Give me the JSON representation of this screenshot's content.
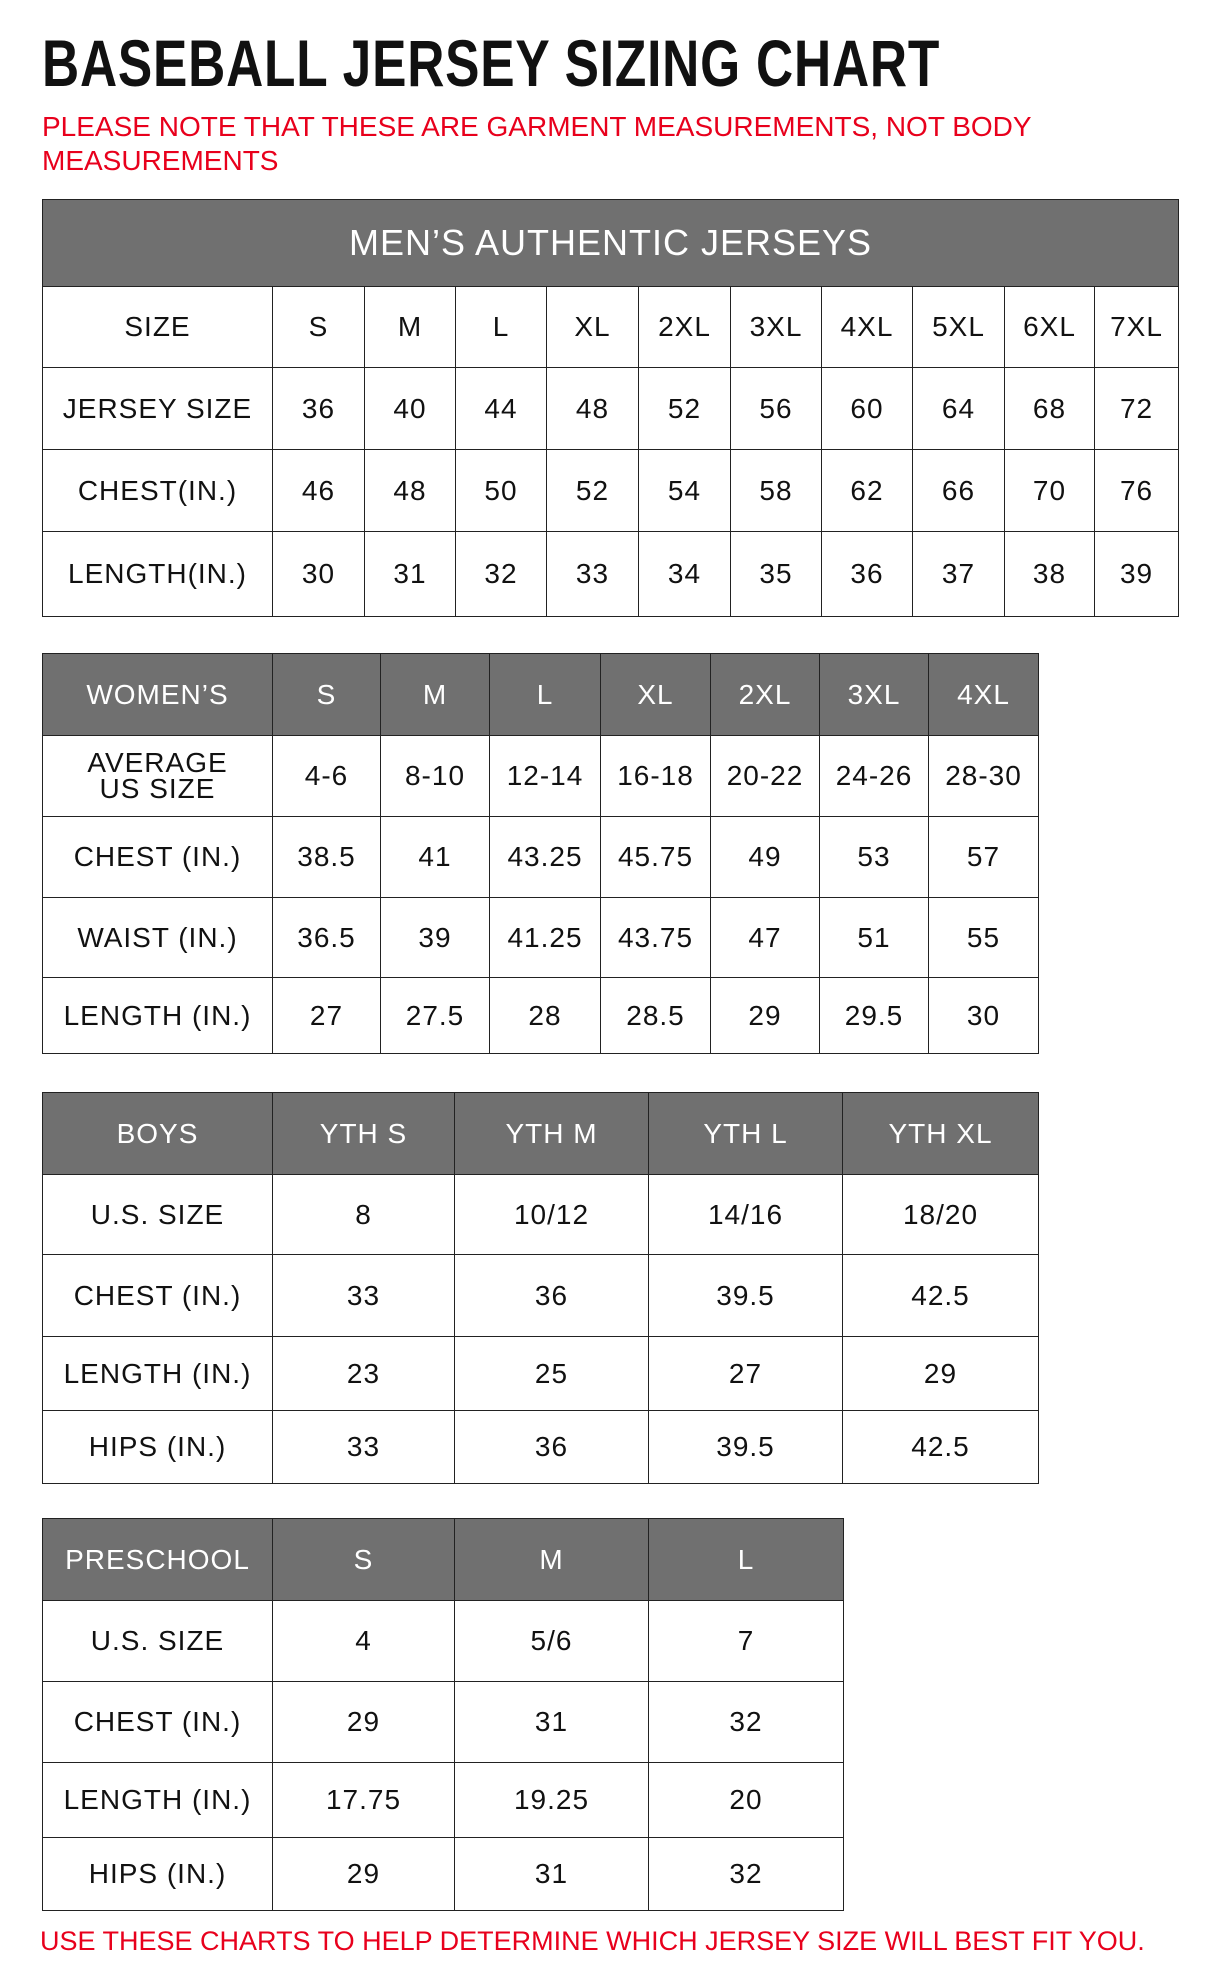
{
  "title": "BASEBALL JERSEY SIZING CHART",
  "note": "PLEASE NOTE THAT THESE ARE GARMENT MEASUREMENTS, NOT BODY MEASUREMENTS",
  "footer": "USE THESE CHARTS TO HELP DETERMINE WHICH JERSEY SIZE WILL BEST FIT YOU.",
  "colors": {
    "header_bg": "#707070",
    "note_red": "#e8001c"
  },
  "tables": [
    {
      "id": "mens",
      "banner": "MEN’S AUTHENTIC JERSEYS",
      "header_is_gray": false,
      "header": [
        "SIZE",
        "S",
        "M",
        "L",
        "XL",
        "2XL",
        "3XL",
        "4XL",
        "5XL",
        "6XL",
        "7XL"
      ],
      "rows": [
        [
          "JERSEY SIZE",
          "36",
          "40",
          "44",
          "48",
          "52",
          "56",
          "60",
          "64",
          "68",
          "72"
        ],
        [
          "CHEST(IN.)",
          "46",
          "48",
          "50",
          "52",
          "54",
          "58",
          "62",
          "66",
          "70",
          "76"
        ],
        [
          "LENGTH(IN.)",
          "30",
          "31",
          "32",
          "33",
          "34",
          "35",
          "36",
          "37",
          "38",
          "39"
        ]
      ]
    },
    {
      "id": "womens",
      "header_is_gray": true,
      "header": [
        "WOMEN’S",
        "S",
        "M",
        "L",
        "XL",
        "2XL",
        "3XL",
        "4XL"
      ],
      "rows": [
        [
          "AVERAGE US SIZE",
          "4-6",
          "8-10",
          "12-14",
          "16-18",
          "20-22",
          "24-26",
          "28-30"
        ],
        [
          "CHEST (IN.)",
          "38.5",
          "41",
          "43.25",
          "45.75",
          "49",
          "53",
          "57"
        ],
        [
          "WAIST (IN.)",
          "36.5",
          "39",
          "41.25",
          "43.75",
          "47",
          "51",
          "55"
        ],
        [
          "LENGTH (IN.)",
          "27",
          "27.5",
          "28",
          "28.5",
          "29",
          "29.5",
          "30"
        ]
      ]
    },
    {
      "id": "boys",
      "header_is_gray": true,
      "header": [
        "BOYS",
        "YTH S",
        "YTH M",
        "YTH L",
        "YTH XL"
      ],
      "rows": [
        [
          "U.S. SIZE",
          "8",
          "10/12",
          "14/16",
          "18/20"
        ],
        [
          "CHEST (IN.)",
          "33",
          "36",
          "39.5",
          "42.5"
        ],
        [
          "LENGTH (IN.)",
          "23",
          "25",
          "27",
          "29"
        ],
        [
          "HIPS (IN.)",
          "33",
          "36",
          "39.5",
          "42.5"
        ]
      ]
    },
    {
      "id": "preschool",
      "header_is_gray": true,
      "header": [
        "PRESCHOOL",
        "S",
        "M",
        "L"
      ],
      "rows": [
        [
          "U.S. SIZE",
          "4",
          "5/6",
          "7"
        ],
        [
          "CHEST (IN.)",
          "29",
          "31",
          "32"
        ],
        [
          "LENGTH (IN.)",
          "17.75",
          "19.25",
          "20"
        ],
        [
          "HIPS (IN.)",
          "29",
          "31",
          "32"
        ]
      ]
    }
  ]
}
